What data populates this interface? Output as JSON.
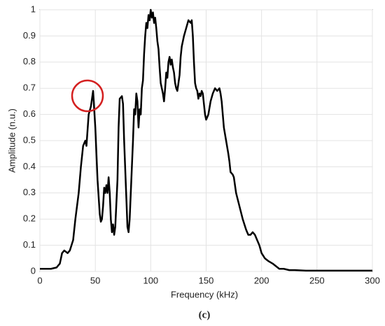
{
  "chart_data": {
    "type": "line",
    "xlabel": "Frequency (kHz)",
    "ylabel": "Amplitude (n.u.)",
    "caption": "(c)",
    "x": [
      0,
      5,
      10,
      15,
      18,
      20,
      22,
      25,
      27,
      30,
      32,
      35,
      37,
      39,
      41,
      42,
      44,
      46,
      47,
      48,
      49,
      50,
      52,
      54,
      55,
      56,
      57,
      58,
      59,
      60,
      61,
      62,
      63,
      64,
      65,
      66,
      67,
      68,
      70,
      71,
      72,
      74,
      75,
      76,
      78,
      79,
      80,
      81,
      82,
      84,
      85,
      86,
      87,
      88,
      89,
      90,
      91,
      92,
      93,
      94,
      95,
      96,
      97,
      98,
      99,
      100,
      101,
      102,
      103,
      104,
      105,
      106,
      107,
      108,
      109,
      110,
      111,
      112,
      113,
      114,
      115,
      116,
      117,
      118,
      119,
      120,
      121,
      122,
      123,
      124,
      125,
      126,
      127,
      128,
      130,
      132,
      134,
      136,
      137,
      138,
      139,
      140,
      141,
      142,
      143,
      144,
      145,
      146,
      147,
      148,
      149,
      150,
      152,
      154,
      156,
      158,
      160,
      162,
      163,
      164,
      165,
      166,
      168,
      170,
      171,
      172,
      174,
      175,
      177,
      180,
      183,
      186,
      188,
      190,
      192,
      194,
      196,
      198,
      200,
      203,
      206,
      210,
      213,
      216,
      220,
      225,
      230,
      240,
      260,
      280,
      300
    ],
    "values": [
      0.01,
      0.01,
      0.01,
      0.015,
      0.03,
      0.07,
      0.08,
      0.07,
      0.08,
      0.12,
      0.2,
      0.3,
      0.4,
      0.48,
      0.5,
      0.48,
      0.6,
      0.63,
      0.66,
      0.69,
      0.62,
      0.55,
      0.35,
      0.22,
      0.19,
      0.2,
      0.25,
      0.32,
      0.3,
      0.33,
      0.3,
      0.36,
      0.3,
      0.2,
      0.15,
      0.18,
      0.14,
      0.17,
      0.35,
      0.55,
      0.66,
      0.67,
      0.64,
      0.5,
      0.28,
      0.17,
      0.15,
      0.2,
      0.3,
      0.5,
      0.62,
      0.6,
      0.68,
      0.65,
      0.55,
      0.62,
      0.6,
      0.7,
      0.73,
      0.83,
      0.9,
      0.95,
      0.93,
      0.98,
      0.96,
      1.0,
      0.97,
      0.99,
      0.95,
      0.97,
      0.93,
      0.88,
      0.85,
      0.78,
      0.72,
      0.7,
      0.68,
      0.65,
      0.7,
      0.76,
      0.74,
      0.8,
      0.82,
      0.79,
      0.81,
      0.78,
      0.76,
      0.72,
      0.7,
      0.69,
      0.72,
      0.75,
      0.82,
      0.86,
      0.9,
      0.93,
      0.96,
      0.95,
      0.96,
      0.9,
      0.8,
      0.72,
      0.7,
      0.69,
      0.66,
      0.68,
      0.67,
      0.69,
      0.68,
      0.64,
      0.6,
      0.58,
      0.6,
      0.65,
      0.68,
      0.7,
      0.69,
      0.7,
      0.68,
      0.65,
      0.6,
      0.55,
      0.5,
      0.45,
      0.42,
      0.38,
      0.37,
      0.36,
      0.3,
      0.25,
      0.2,
      0.16,
      0.14,
      0.14,
      0.15,
      0.14,
      0.12,
      0.1,
      0.07,
      0.05,
      0.04,
      0.03,
      0.02,
      0.01,
      0.01,
      0.005,
      0.005,
      0.003,
      0.003,
      0.003,
      0.003
    ],
    "color": "#000000",
    "xlim": [
      0,
      300
    ],
    "xticks": [
      0,
      50,
      100,
      150,
      200,
      250,
      300
    ],
    "ylim": [
      0,
      1
    ],
    "yticks": [
      0,
      0.1,
      0.2,
      0.3,
      0.4,
      0.5,
      0.6,
      0.7,
      0.8,
      0.9,
      1
    ],
    "grid": true
  }
}
